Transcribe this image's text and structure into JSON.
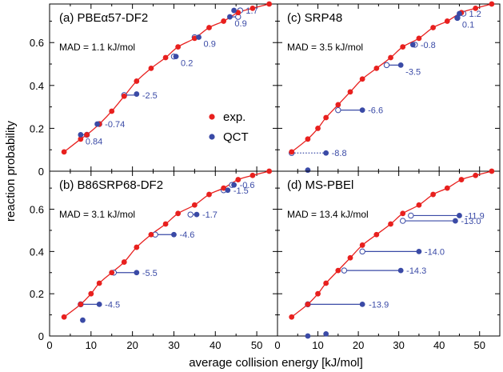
{
  "figure": {
    "xlabel": "average collision energy [kJ/mol]",
    "ylabel": "reaction probability",
    "legend": {
      "exp_label": "exp.",
      "qct_label": "QCT"
    }
  },
  "colors": {
    "exp": "#e8201e",
    "qct": "#3a4aa6",
    "frame": "#000000"
  },
  "chart_data": [
    {
      "type": "scatter",
      "title": "(a) PBEα57-DF2",
      "annotation": "MAD = 1.1 kJ/mol",
      "xlim": [
        0,
        55
      ],
      "ylim": [
        0,
        0.78
      ],
      "x_ticks": [],
      "y_ticks": [
        0,
        0.2,
        0.4,
        0.6
      ],
      "grid": false,
      "legend_position": "center-right",
      "exp": [
        [
          3.5,
          0.09
        ],
        [
          7.5,
          0.15
        ],
        [
          9,
          0.17
        ],
        [
          12,
          0.22
        ],
        [
          15,
          0.28
        ],
        [
          18,
          0.35
        ],
        [
          21,
          0.42
        ],
        [
          24.5,
          0.48
        ],
        [
          28,
          0.53
        ],
        [
          31,
          0.58
        ],
        [
          35,
          0.62
        ],
        [
          38.5,
          0.67
        ],
        [
          42,
          0.7
        ],
        [
          45.5,
          0.74
        ],
        [
          49,
          0.76
        ],
        [
          53,
          0.78
        ]
      ],
      "qct": [
        [
          7.5,
          0.17
        ],
        [
          11.5,
          0.22
        ],
        [
          21,
          0.36
        ],
        [
          30.5,
          0.535
        ],
        [
          36,
          0.625
        ],
        [
          43.5,
          0.72
        ],
        [
          44.5,
          0.75
        ]
      ],
      "shifts": [
        {
          "from": 9,
          "to": 7.5,
          "y": 0.17,
          "label": "0.84",
          "dotted": false,
          "label_side": "below"
        },
        {
          "from": 12,
          "to": 11.5,
          "y": 0.22,
          "label": "-0.74",
          "dotted": false,
          "label_side": "right"
        },
        {
          "from": 18,
          "to": 21,
          "y": 0.355,
          "label": "-2.5",
          "dotted": false,
          "label_side": "right"
        },
        {
          "from": 30,
          "to": 30.5,
          "y": 0.535,
          "label": "0.2",
          "dotted": false,
          "label_side": "below"
        },
        {
          "from": 35,
          "to": 36,
          "y": 0.625,
          "label": "0.9",
          "dotted": false,
          "label_side": "below"
        },
        {
          "from": 45.5,
          "to": 43.5,
          "y": 0.72,
          "label": "0.9",
          "dotted": false,
          "label_side": "below"
        },
        {
          "from": 46,
          "to": 44.5,
          "y": 0.75,
          "label": "1.7",
          "dotted": false,
          "label_side": "right"
        }
      ]
    },
    {
      "type": "scatter",
      "title": "(c) SRP48",
      "annotation": "MAD = 3.5 kJ/mol",
      "xlim": [
        0,
        55
      ],
      "ylim": [
        0,
        0.78
      ],
      "x_ticks": [],
      "y_ticks": [],
      "grid": false,
      "legend_position": "none",
      "exp": [
        [
          3.5,
          0.09
        ],
        [
          7.5,
          0.15
        ],
        [
          10,
          0.2
        ],
        [
          12,
          0.25
        ],
        [
          15,
          0.31
        ],
        [
          18,
          0.37
        ],
        [
          21,
          0.43
        ],
        [
          24.5,
          0.48
        ],
        [
          28,
          0.53
        ],
        [
          31,
          0.58
        ],
        [
          35,
          0.62
        ],
        [
          38.5,
          0.67
        ],
        [
          42,
          0.7
        ],
        [
          45.5,
          0.74
        ],
        [
          49,
          0.76
        ],
        [
          53,
          0.78
        ]
      ],
      "qct": [
        [
          12,
          0.085
        ],
        [
          7.5,
          0.005
        ],
        [
          21,
          0.285
        ],
        [
          30.5,
          0.495
        ],
        [
          33.5,
          0.59
        ],
        [
          44.5,
          0.715
        ],
        [
          45,
          0.735
        ]
      ],
      "shifts": [
        {
          "from": 3.5,
          "to": 12,
          "y": 0.085,
          "label": "-8.8",
          "dotted": true,
          "label_side": "right"
        },
        {
          "from": 15,
          "to": 21,
          "y": 0.285,
          "label": "-6.6",
          "dotted": false,
          "label_side": "right"
        },
        {
          "from": 27,
          "to": 30.5,
          "y": 0.495,
          "label": "-3.5",
          "dotted": false,
          "label_side": "below"
        },
        {
          "from": 34,
          "to": 33.5,
          "y": 0.59,
          "label": "-0.8",
          "dotted": false,
          "label_side": "right"
        },
        {
          "from": 44.5,
          "to": 44.5,
          "y": 0.715,
          "label": "0.1",
          "dotted": false,
          "label_side": "below"
        },
        {
          "from": 46,
          "to": 45,
          "y": 0.735,
          "label": "1.2",
          "dotted": false,
          "label_side": "right"
        }
      ]
    },
    {
      "type": "scatter",
      "title": "(b) B86SRP68-DF2",
      "annotation": "MAD = 3.1 kJ/mol",
      "xlim": [
        0,
        55
      ],
      "ylim": [
        0,
        0.78
      ],
      "x_ticks": [
        0,
        10,
        20,
        30,
        40,
        50
      ],
      "y_ticks": [
        0,
        0.2,
        0.4,
        0.6
      ],
      "grid": false,
      "legend_position": "none",
      "exp": [
        [
          3.5,
          0.09
        ],
        [
          7.5,
          0.15
        ],
        [
          10,
          0.2
        ],
        [
          12,
          0.25
        ],
        [
          15,
          0.3
        ],
        [
          18,
          0.35
        ],
        [
          21,
          0.42
        ],
        [
          24.5,
          0.48
        ],
        [
          28,
          0.53
        ],
        [
          31,
          0.58
        ],
        [
          35,
          0.62
        ],
        [
          38.5,
          0.67
        ],
        [
          42,
          0.7
        ],
        [
          45.5,
          0.74
        ],
        [
          49,
          0.76
        ],
        [
          53,
          0.78
        ]
      ],
      "qct": [
        [
          12,
          0.15
        ],
        [
          8,
          0.075
        ],
        [
          21,
          0.3
        ],
        [
          30,
          0.48
        ],
        [
          35.5,
          0.575
        ],
        [
          43,
          0.69
        ],
        [
          44.5,
          0.715
        ]
      ],
      "shifts": [
        {
          "from": 7.5,
          "to": 12,
          "y": 0.15,
          "label": "-4.5",
          "dotted": false,
          "label_side": "right"
        },
        {
          "from": 15.5,
          "to": 21,
          "y": 0.3,
          "label": "-5.5",
          "dotted": false,
          "label_side": "right"
        },
        {
          "from": 25.5,
          "to": 30,
          "y": 0.48,
          "label": "-4.6",
          "dotted": false,
          "label_side": "right"
        },
        {
          "from": 34,
          "to": 35.5,
          "y": 0.575,
          "label": "-1.7",
          "dotted": false,
          "label_side": "right"
        },
        {
          "from": 42,
          "to": 43,
          "y": 0.69,
          "label": "-1.5",
          "dotted": false,
          "label_side": "right"
        },
        {
          "from": 44,
          "to": 44.5,
          "y": 0.715,
          "label": "-0.6",
          "dotted": false,
          "label_side": "right"
        }
      ]
    },
    {
      "type": "scatter",
      "title": "(d) MS-PBEl",
      "annotation": "MAD = 13.4 kJ/mol",
      "xlim": [
        0,
        55
      ],
      "ylim": [
        0,
        0.78
      ],
      "x_ticks": [
        0,
        10,
        20,
        30,
        40,
        50
      ],
      "y_ticks": [],
      "grid": false,
      "legend_position": "none",
      "exp": [
        [
          3.5,
          0.09
        ],
        [
          7.5,
          0.15
        ],
        [
          10,
          0.2
        ],
        [
          12,
          0.25
        ],
        [
          15,
          0.31
        ],
        [
          18,
          0.37
        ],
        [
          21,
          0.43
        ],
        [
          24.5,
          0.48
        ],
        [
          28,
          0.53
        ],
        [
          31,
          0.58
        ],
        [
          35,
          0.62
        ],
        [
          38.5,
          0.67
        ],
        [
          42,
          0.7
        ],
        [
          45.5,
          0.74
        ],
        [
          49,
          0.76
        ],
        [
          53,
          0.78
        ]
      ],
      "qct": [
        [
          21,
          0.15
        ],
        [
          30.5,
          0.31
        ],
        [
          35,
          0.4
        ],
        [
          44,
          0.545
        ],
        [
          45,
          0.57
        ],
        [
          7.5,
          0.0
        ],
        [
          12,
          0.01
        ]
      ],
      "shifts": [
        {
          "from": 7.5,
          "to": 21,
          "y": 0.15,
          "label": "-13.9",
          "dotted": false,
          "label_side": "below-right"
        },
        {
          "from": 16.5,
          "to": 30.5,
          "y": 0.31,
          "label": "-14.3",
          "dotted": false,
          "label_side": "right"
        },
        {
          "from": 21,
          "to": 35,
          "y": 0.4,
          "label": "-14.0",
          "dotted": false,
          "label_side": "right"
        },
        {
          "from": 31,
          "to": 44,
          "y": 0.545,
          "label": "-13.0",
          "dotted": false,
          "label_side": "right"
        },
        {
          "from": 33,
          "to": 45,
          "y": 0.57,
          "label": "-11.9",
          "dotted": false,
          "label_side": "right"
        }
      ]
    }
  ]
}
